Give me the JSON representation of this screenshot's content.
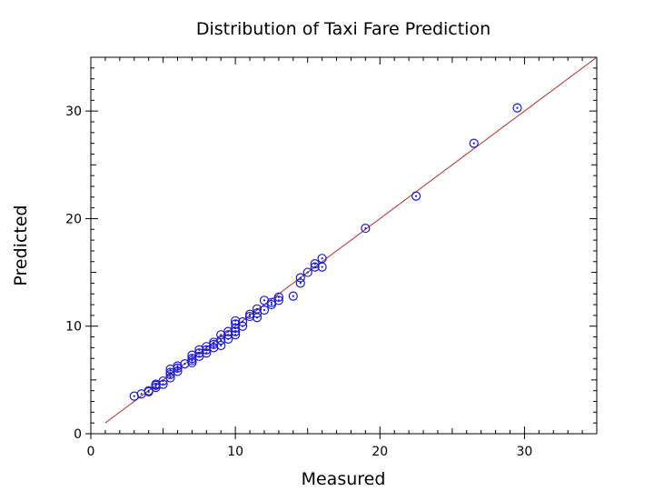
{
  "chart_data": {
    "type": "scatter",
    "title": "Distribution of Taxi Fare Prediction",
    "xlabel": "Measured",
    "ylabel": "Predicted",
    "xlim": [
      0,
      35
    ],
    "ylim": [
      0,
      35
    ],
    "x_ticks": [
      0,
      10,
      20,
      30
    ],
    "y_ticks": [
      0,
      10,
      20,
      30
    ],
    "x_tick_labels": [
      "0",
      "10",
      "20",
      "30"
    ],
    "y_tick_labels": [
      "0",
      "10",
      "20",
      "30"
    ],
    "grid": false,
    "legend": "none",
    "colors": {
      "points": "#1a1ad6",
      "line": "#b03030",
      "axes": "#000000"
    },
    "fit_line": {
      "x": [
        1,
        35
      ],
      "y": [
        1,
        35
      ]
    },
    "series": [
      {
        "points": [
          [
            3.0,
            3.5
          ],
          [
            3.5,
            3.7
          ],
          [
            4.0,
            3.9
          ],
          [
            4.0,
            4.0
          ],
          [
            4.5,
            4.3
          ],
          [
            4.5,
            4.5
          ],
          [
            4.5,
            4.6
          ],
          [
            5.0,
            4.6
          ],
          [
            5.0,
            4.9
          ],
          [
            5.5,
            5.2
          ],
          [
            5.5,
            5.5
          ],
          [
            5.5,
            5.7
          ],
          [
            5.5,
            6.0
          ],
          [
            6.0,
            5.8
          ],
          [
            6.0,
            6.1
          ],
          [
            6.0,
            6.3
          ],
          [
            6.5,
            6.5
          ],
          [
            7.0,
            6.6
          ],
          [
            7.0,
            6.8
          ],
          [
            7.0,
            7.0
          ],
          [
            7.0,
            7.3
          ],
          [
            7.5,
            7.2
          ],
          [
            7.5,
            7.5
          ],
          [
            7.5,
            7.8
          ],
          [
            8.0,
            7.5
          ],
          [
            8.0,
            7.8
          ],
          [
            8.0,
            8.1
          ],
          [
            8.5,
            8.0
          ],
          [
            8.5,
            8.3
          ],
          [
            8.5,
            8.5
          ],
          [
            9.0,
            8.2
          ],
          [
            9.0,
            8.7
          ],
          [
            9.0,
            9.2
          ],
          [
            9.5,
            8.8
          ],
          [
            9.5,
            9.2
          ],
          [
            9.5,
            9.5
          ],
          [
            10.0,
            9.2
          ],
          [
            10.0,
            9.5
          ],
          [
            10.0,
            9.8
          ],
          [
            10.0,
            10.2
          ],
          [
            10.0,
            10.5
          ],
          [
            10.5,
            10.0
          ],
          [
            10.5,
            10.4
          ],
          [
            11.0,
            10.9
          ],
          [
            11.0,
            11.1
          ],
          [
            11.5,
            10.8
          ],
          [
            11.5,
            11.2
          ],
          [
            11.5,
            11.6
          ],
          [
            12.0,
            11.5
          ],
          [
            12.0,
            12.4
          ],
          [
            12.5,
            12.0
          ],
          [
            12.5,
            12.2
          ],
          [
            13.0,
            12.4
          ],
          [
            13.0,
            12.7
          ],
          [
            14.0,
            12.8
          ],
          [
            14.5,
            14.0
          ],
          [
            14.5,
            14.5
          ],
          [
            15.0,
            15.0
          ],
          [
            15.5,
            15.5
          ],
          [
            15.5,
            15.8
          ],
          [
            16.0,
            15.5
          ],
          [
            16.0,
            16.3
          ],
          [
            19.0,
            19.1
          ],
          [
            22.5,
            22.1
          ],
          [
            26.5,
            27.0
          ],
          [
            29.5,
            30.3
          ]
        ]
      }
    ]
  }
}
